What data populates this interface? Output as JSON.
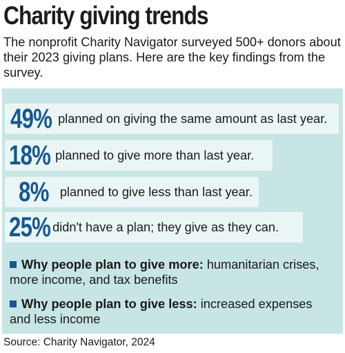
{
  "title": "Charity giving trends",
  "intro": "The nonprofit Charity Navigator surveyed 500+ donors about their 2023 giving plans. Here are the key findings from the survey.",
  "chart_data": {
    "type": "table",
    "rows": [
      {
        "value": "49%",
        "label": "planned on giving the same amount as last year."
      },
      {
        "value": "18%",
        "label": "planned to give more than last year."
      },
      {
        "value": "8%",
        "label": "planned to give less than last year."
      },
      {
        "value": "25%",
        "label": "didn't have a plan; they give as they can."
      }
    ]
  },
  "reasons": {
    "more": {
      "heading": "Why people plan to give more:",
      "text": "humanitarian crises, more income, and tax benefits"
    },
    "less": {
      "heading": "Why people plan to give less:",
      "text": "increased expenses and less income"
    }
  },
  "source": "Source: Charity Navigator, 2024",
  "colors": {
    "accent": "#175790",
    "panel": "#c6e5e4",
    "row": "#eaf6f5"
  }
}
